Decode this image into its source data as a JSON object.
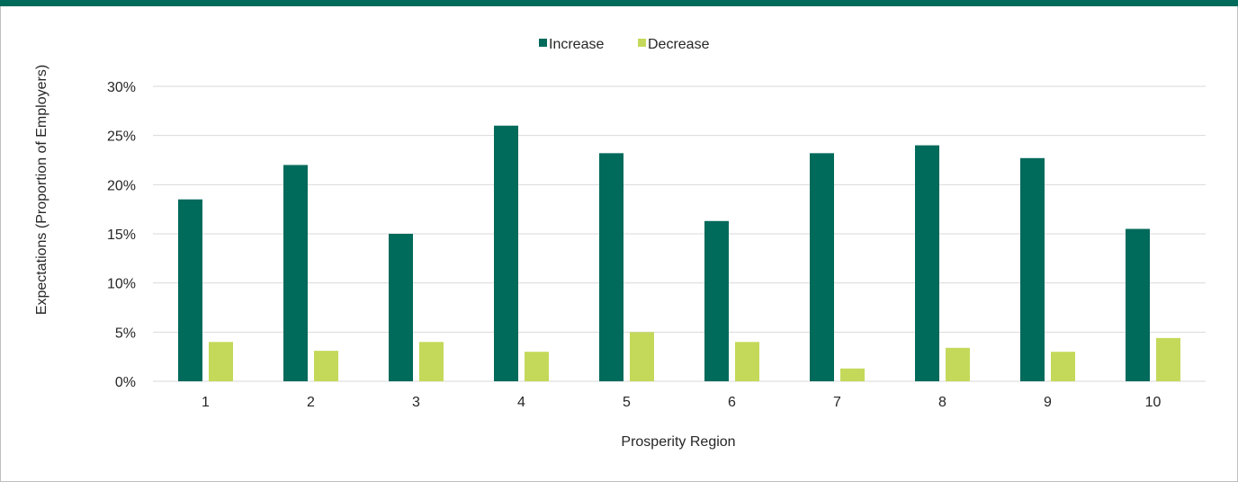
{
  "colors": {
    "top_bar": "#006a5b",
    "increase": "#006a5b",
    "decrease": "#c4d95a",
    "grid": "#d9d9d9"
  },
  "chart_data": {
    "type": "bar",
    "categories": [
      "1",
      "2",
      "3",
      "4",
      "5",
      "6",
      "7",
      "8",
      "9",
      "10"
    ],
    "series": [
      {
        "name": "Increase",
        "values": [
          18.5,
          22.0,
          15.0,
          26.0,
          23.2,
          16.3,
          23.2,
          24.0,
          22.7,
          15.5
        ]
      },
      {
        "name": "Decrease",
        "values": [
          4.0,
          3.1,
          4.0,
          3.0,
          5.0,
          4.0,
          1.3,
          3.4,
          3.0,
          4.4
        ]
      }
    ],
    "xlabel": "Prosperity Region",
    "ylabel": "Expectations  (Proportion of Employers)",
    "ylim": [
      0,
      30
    ],
    "yticks": [
      0,
      5,
      10,
      15,
      20,
      25,
      30
    ],
    "ytick_labels": [
      "0%",
      "5%",
      "10%",
      "15%",
      "20%",
      "25%",
      "30%"
    ],
    "grid": true,
    "legend_position": "top-center"
  }
}
